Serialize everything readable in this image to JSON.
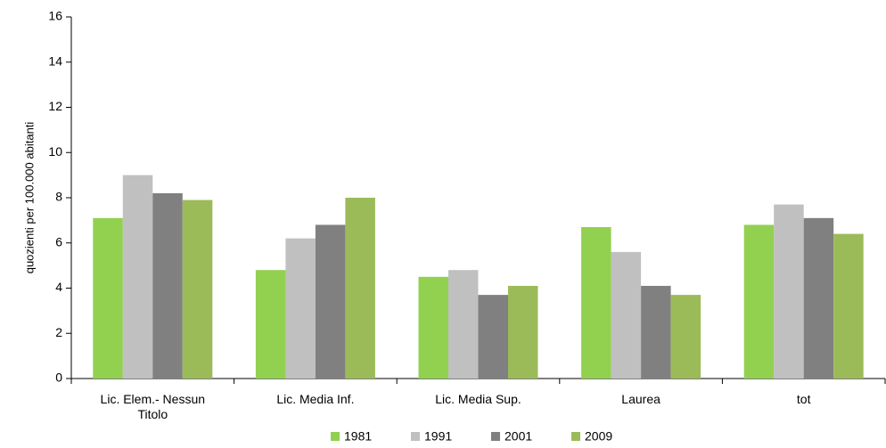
{
  "chart_data": {
    "type": "bar",
    "y_label": "quozienti per 100.000 abitanti",
    "categories": [
      "Lic. Elem.- Nessun Titolo",
      "Lic. Media Inf.",
      "Lic. Media Sup.",
      "Laurea",
      "tot"
    ],
    "series": [
      {
        "name": "1981",
        "color": "#92d050",
        "values": [
          7.1,
          4.8,
          4.5,
          6.7,
          6.8
        ]
      },
      {
        "name": "1991",
        "color": "#c0c0c0",
        "values": [
          9.0,
          6.2,
          4.8,
          5.6,
          7.7
        ]
      },
      {
        "name": "2001",
        "color": "#808080",
        "values": [
          8.2,
          6.8,
          3.7,
          4.1,
          7.1
        ]
      },
      {
        "name": "2009",
        "color": "#9bbb59",
        "values": [
          7.9,
          8.0,
          4.1,
          3.7,
          6.4
        ]
      }
    ],
    "ylim": [
      0,
      16
    ],
    "yticks": [
      0,
      2,
      4,
      6,
      8,
      10,
      12,
      14,
      16
    ],
    "grid": false,
    "legend": "bottom"
  }
}
